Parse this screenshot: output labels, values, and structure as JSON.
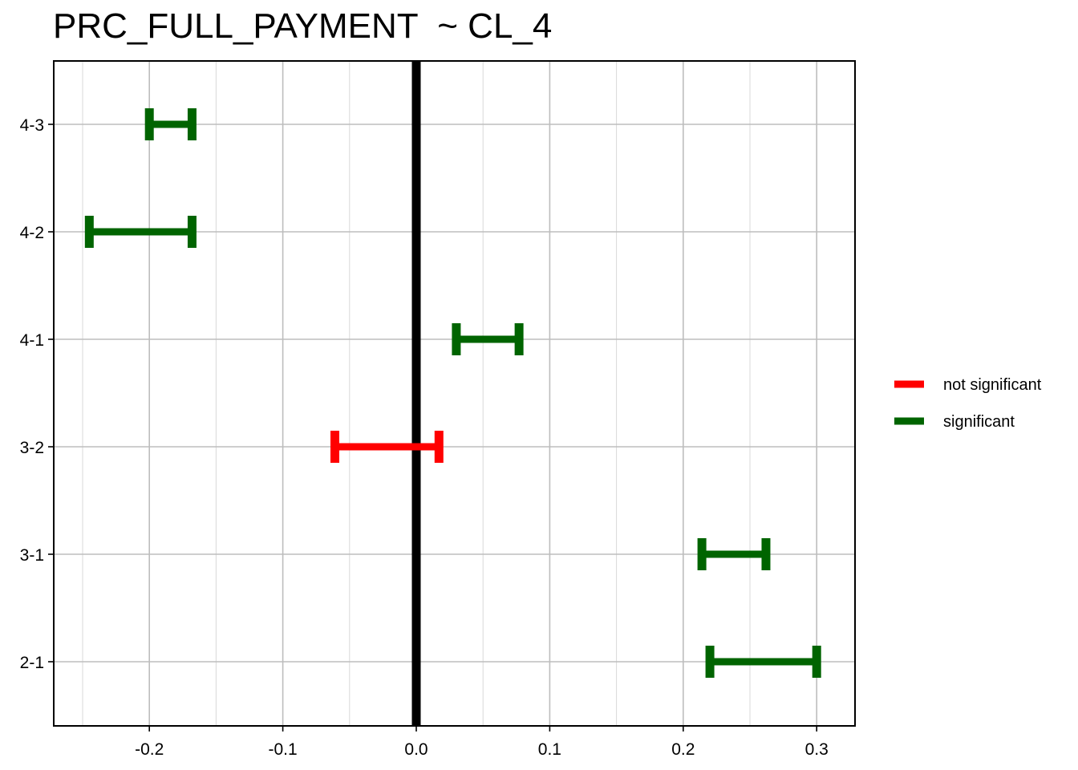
{
  "chart_data": {
    "type": "errorbar",
    "title": "PRC_FULL_PAYMENT  ~ CL_4",
    "xlabel": "",
    "ylabel": "",
    "xlim": [
      -0.272,
      0.3
    ],
    "x_ticks": [
      -0.2,
      -0.1,
      0.0,
      0.1,
      0.2,
      0.3
    ],
    "x_tick_labels": [
      "-0.2",
      "-0.1",
      "0.0",
      "0.1",
      "0.2",
      "0.3"
    ],
    "categories": [
      "4-3",
      "4-2",
      "4-1",
      "3-2",
      "3-1",
      "2-1"
    ],
    "reference_line": 0.0,
    "grid": true,
    "legend_position": "right",
    "legend": [
      {
        "name": "not significant",
        "color": "#ff0000"
      },
      {
        "name": "significant",
        "color": "#006400"
      }
    ],
    "intervals": [
      {
        "label": "4-3",
        "lower": -0.2,
        "upper": -0.168,
        "group": "significant"
      },
      {
        "label": "4-2",
        "lower": -0.245,
        "upper": -0.168,
        "group": "significant"
      },
      {
        "label": "4-1",
        "lower": 0.03,
        "upper": 0.077,
        "group": "significant"
      },
      {
        "label": "3-2",
        "lower": -0.061,
        "upper": 0.017,
        "group": "not significant"
      },
      {
        "label": "3-1",
        "lower": 0.214,
        "upper": 0.262,
        "group": "significant"
      },
      {
        "label": "2-1",
        "lower": 0.22,
        "upper": 0.3,
        "group": "significant"
      }
    ]
  }
}
